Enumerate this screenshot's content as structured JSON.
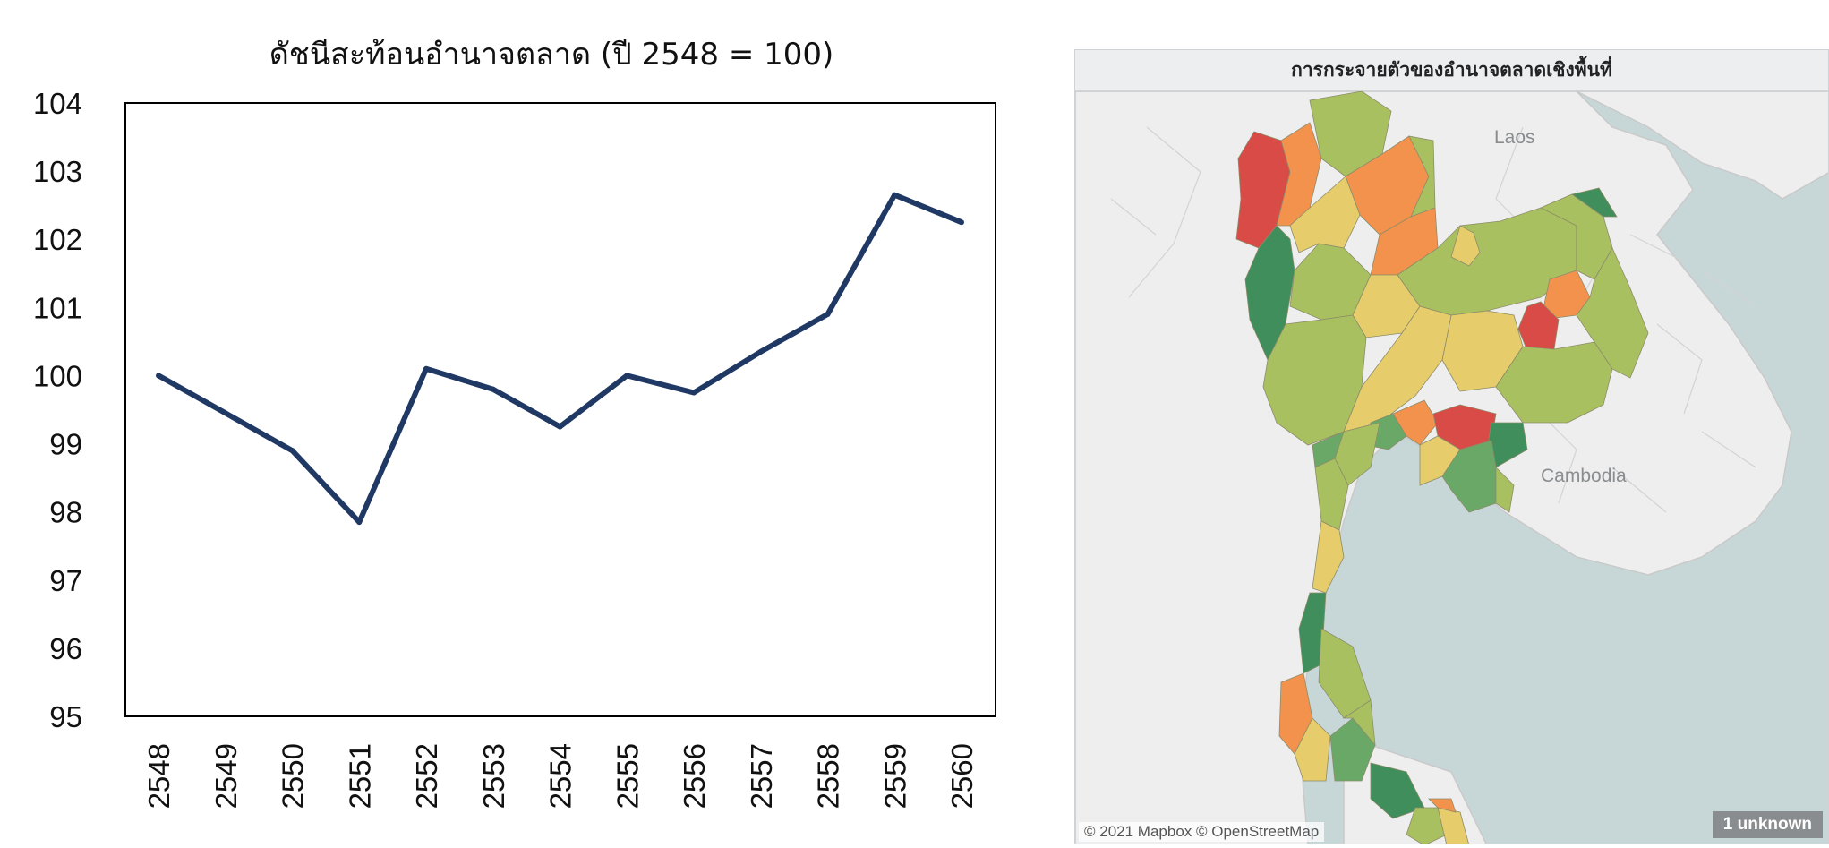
{
  "chart_data": {
    "type": "line",
    "title": "ดัชนีสะท้อนอำนาจตลาด (ปี 2548 = 100)",
    "xlabel": "",
    "ylabel": "",
    "categories": [
      "2548",
      "2549",
      "2550",
      "2551",
      "2552",
      "2553",
      "2554",
      "2555",
      "2556",
      "2557",
      "2558",
      "2559",
      "2560"
    ],
    "series": [
      {
        "values": [
          100.0,
          99.45,
          98.9,
          97.85,
          100.1,
          99.8,
          99.25,
          100.0,
          99.75,
          100.35,
          100.9,
          102.65,
          102.25
        ],
        "color": "#1f3864"
      }
    ],
    "ylim": [
      95,
      104
    ],
    "yticks": [
      95,
      96,
      97,
      98,
      99,
      100,
      101,
      102,
      103,
      104
    ],
    "grid": false,
    "legend": "none"
  },
  "map": {
    "title": "การกระจายตัวของอำนาจตลาดเชิงพื้นที่",
    "labels": {
      "laos": "Laos",
      "cambodia": "Cambodia"
    },
    "credit": "© 2021 Mapbox © OpenStreetMap",
    "unknown_badge": "1 unknown",
    "colors": {
      "water": "#c7d7d8",
      "land": "#eeeeee",
      "high": "#d94b46",
      "mid_high": "#f3924d",
      "mid": "#e6cc6b",
      "mid_low": "#a9c061",
      "low": "#3f8e5b"
    }
  }
}
